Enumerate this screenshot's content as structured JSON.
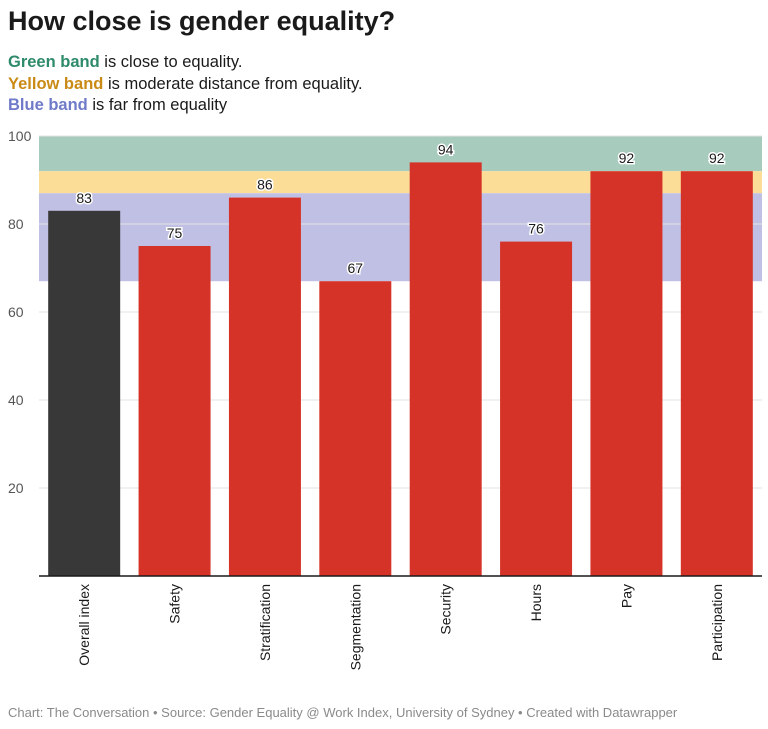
{
  "header": {
    "title": "How close is gender equality?"
  },
  "legend": [
    {
      "key": "Green band",
      "text": " is close to equality.",
      "color": "#2e8b6a"
    },
    {
      "key": "Yellow band",
      "text": " is moderate distance from equality.",
      "color": "#c98a16"
    },
    {
      "key": "Blue band",
      "text": " is far from equality",
      "color": "#6f7ac9"
    }
  ],
  "footer": {
    "text": "Chart: The Conversation • Source: Gender Equality @ Work Index, University of Sydney • Created with Datawrapper"
  },
  "chart_data": {
    "type": "bar",
    "categories": [
      "Overall index",
      "Safety",
      "Stratification",
      "Segmentation",
      "Security",
      "Hours",
      "Pay",
      "Participation"
    ],
    "values": [
      83,
      75,
      86,
      67,
      94,
      76,
      92,
      92
    ],
    "bar_colors": [
      "#383838",
      "#d63328",
      "#d63328",
      "#d63328",
      "#d63328",
      "#d63328",
      "#d63328",
      "#d63328"
    ],
    "ylim": [
      0,
      100
    ],
    "yticks": [
      20,
      40,
      60,
      80,
      100
    ],
    "grid": true,
    "bands": [
      {
        "from": 92,
        "to": 100,
        "color": "#a7cbbd"
      },
      {
        "from": 87,
        "to": 92,
        "color": "#fbdd98"
      },
      {
        "from": 67,
        "to": 87,
        "color": "#c0c0e4"
      }
    ],
    "title": "",
    "xlabel": "",
    "ylabel": ""
  }
}
